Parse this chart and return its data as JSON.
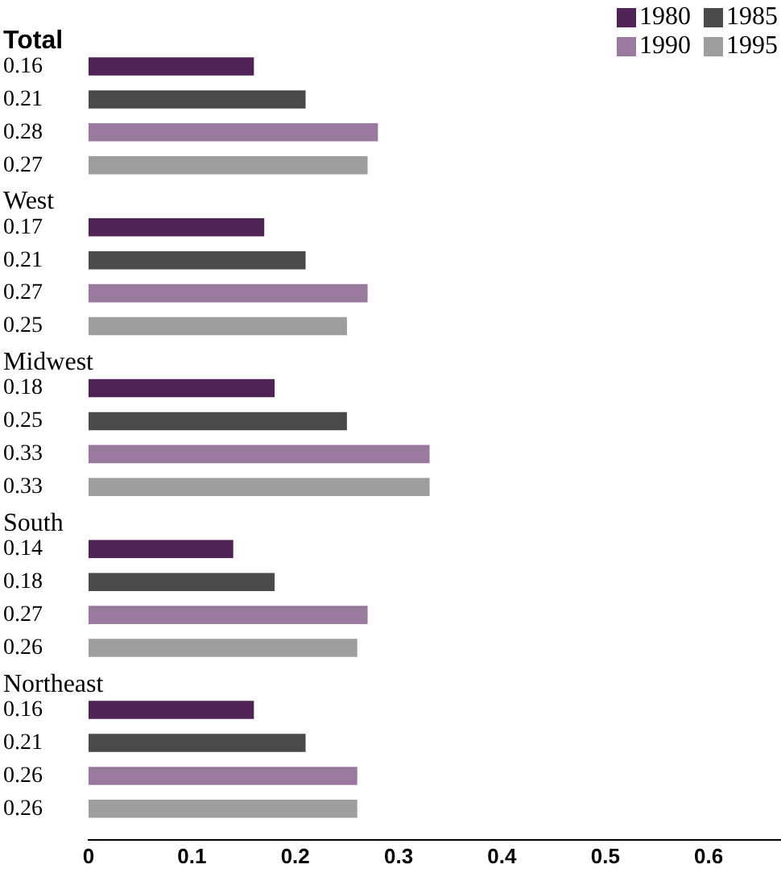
{
  "chart_data": {
    "type": "bar",
    "orientation": "horizontal",
    "categories": [
      "Total",
      "West",
      "Midwest",
      "South",
      "Northeast"
    ],
    "series": [
      {
        "name": "1980",
        "color": "#4f2356",
        "values": [
          0.16,
          0.17,
          0.18,
          0.14,
          0.16
        ]
      },
      {
        "name": "1985",
        "color": "#4a4a4a",
        "values": [
          0.21,
          0.21,
          0.25,
          0.18,
          0.21
        ]
      },
      {
        "name": "1990",
        "color": "#9b7aa0",
        "values": [
          0.28,
          0.27,
          0.33,
          0.27,
          0.26
        ]
      },
      {
        "name": "1995",
        "color": "#9e9e9e",
        "values": [
          0.27,
          0.25,
          0.33,
          0.26,
          0.26
        ]
      }
    ],
    "xlim": [
      0,
      0.67
    ],
    "xticks": [
      0,
      0.1,
      0.2,
      0.3,
      0.4,
      0.5,
      0.6
    ],
    "data_labels": true,
    "legend": "top right",
    "grid": false
  }
}
